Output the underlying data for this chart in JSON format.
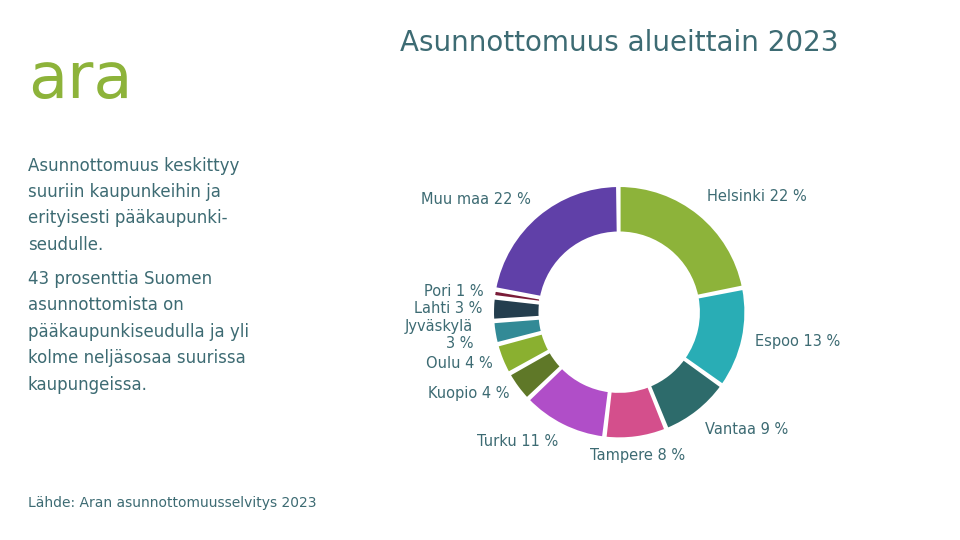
{
  "title": "Asunnottomuus alueittain 2023",
  "logo_text": "ara",
  "body_text1": "Asunnottomuus keskittyy\nsuuriin kaupunkeihin ja\nerityisesti pääkaupunki-\nseudulle.",
  "body_text2": "43 prosenttia Suomen\nasunnottomista on\npääkaupunkiseudulla ja yli\nkolme neljäsosaa suurissa\nkaupungeissa.",
  "source_text": "Lähde: Aran asunnottomuusselvitys 2023",
  "labels": [
    "Helsinki",
    "Espoo",
    "Vantaa",
    "Tampere",
    "Turku",
    "Kuopio",
    "Oulu",
    "Jyväskylä",
    "Lahti",
    "Pori",
    "Muu maa"
  ],
  "values": [
    22,
    13,
    9,
    8,
    11,
    4,
    4,
    3,
    3,
    1,
    22
  ],
  "colors": [
    "#8db33a",
    "#29adb5",
    "#2d6b6b",
    "#d44f8c",
    "#b04ec8",
    "#5f7828",
    "#8ab030",
    "#328a96",
    "#243e4e",
    "#7a1c38",
    "#6040a8"
  ],
  "background_color": "#ffffff",
  "title_color": "#3d6b73",
  "logo_color": "#8db33a",
  "text_color": "#3d6b73"
}
